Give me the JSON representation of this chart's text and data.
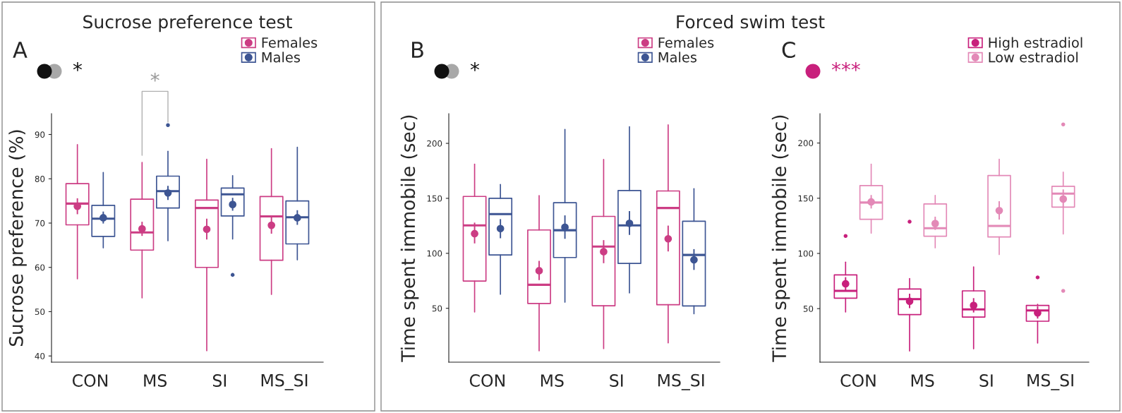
{
  "chart_data": [
    {
      "type": "box",
      "title": "Sucrose preference test",
      "ylabel": "Sucrose preference (%)",
      "categories": [
        "CON",
        "MS",
        "SI",
        "MS_SI"
      ],
      "ylim": [
        38.6,
        94.7
      ],
      "yticks": [
        40,
        50,
        60,
        70,
        80,
        90
      ],
      "grid": false,
      "legend": "top right",
      "marker": "circle",
      "annotations": [
        "A",
        "*",
        "*"
      ],
      "series": [
        {
          "name": "Females",
          "color": "#cc3d84",
          "boxes": [
            {
              "low": 57.4,
              "q1": 69.6,
              "median": 74.4,
              "q3": 78.9,
              "high": 87.7
            },
            {
              "low": 53.1,
              "q1": 63.9,
              "median": 67.9,
              "q3": 75.4,
              "high": 83.7
            },
            {
              "low": 41.2,
              "q1": 60.0,
              "median": 73.4,
              "q3": 75.2,
              "high": 84.4
            },
            {
              "low": 53.9,
              "q1": 61.6,
              "median": 71.5,
              "q3": 76.0,
              "high": 86.8
            }
          ]
        },
        {
          "name": "Males",
          "color": "#3d5593",
          "boxes": [
            {
              "low": 64.4,
              "q1": 67.0,
              "median": 71.0,
              "q3": 74.0,
              "high": 81.4
            },
            {
              "low": 66.0,
              "q1": 73.4,
              "median": 77.2,
              "q3": 80.6,
              "high": 86.2,
              "outliers": [
                92.1
              ]
            },
            {
              "low": 66.4,
              "q1": 71.6,
              "median": 76.5,
              "q3": 77.9,
              "high": 80.7,
              "outliers": [
                58.3
              ]
            },
            {
              "low": 61.7,
              "q1": 65.3,
              "median": 71.3,
              "q3": 75.0,
              "high": 87.1
            }
          ]
        },
        {
          "type": "scatter",
          "color": "#cc3d84",
          "x": [
            "CON",
            "MS",
            "SI",
            "MS_SI"
          ],
          "values": [
            73.8,
            68.7,
            68.6,
            69.5
          ],
          "errors": [
            [
              72.0,
              75.6
            ],
            [
              67.1,
              70.3
            ],
            [
              66.3,
              71.0
            ],
            [
              67.6,
              71.3
            ]
          ]
        },
        {
          "type": "scatter",
          "color": "#3d5593",
          "x": [
            "CON",
            "MS",
            "SI",
            "MS_SI"
          ],
          "values": [
            71.2,
            76.8,
            74.2,
            71.2
          ],
          "errors": [
            [
              69.9,
              72.6
            ],
            [
              75.2,
              78.4
            ],
            [
              72.8,
              75.7
            ],
            [
              69.6,
              72.9
            ]
          ]
        }
      ]
    },
    {
      "type": "box",
      "title": "Forced swim test",
      "ylabel": "Time spent immobile (sec)",
      "categories": [
        "CON",
        "MS",
        "SI",
        "MS_SI"
      ],
      "ylim": [
        1,
        227
      ],
      "yticks": [
        50,
        100,
        150,
        200
      ],
      "grid": false,
      "legend": "top right",
      "marker": "circle",
      "annotations": [
        "B",
        "*"
      ],
      "series": [
        {
          "name": "Females",
          "color": "#cc3d84",
          "boxes": [
            {
              "low": 46.6,
              "q1": 74.8,
              "median": 125.4,
              "q3": 151.7,
              "high": 181.1
            },
            {
              "low": 11.3,
              "q1": 54.4,
              "median": 71.4,
              "q3": 121.2,
              "high": 152.5
            },
            {
              "low": 13.4,
              "q1": 52.3,
              "median": 106.1,
              "q3": 133.6,
              "high": 185.3
            },
            {
              "low": 18.5,
              "q1": 53.2,
              "median": 141.2,
              "q3": 156.7,
              "high": 216.8
            }
          ]
        },
        {
          "name": "Males",
          "color": "#3d5593",
          "boxes": [
            {
              "low": 62.8,
              "q1": 98.5,
              "median": 135.7,
              "q3": 150.0,
              "high": 162.6
            },
            {
              "low": 55.5,
              "q1": 96.2,
              "median": 121.0,
              "q3": 146.0,
              "high": 212.6
            },
            {
              "low": 63.9,
              "q1": 90.8,
              "median": 125.4,
              "q3": 157.1,
              "high": 215.1
            },
            {
              "low": 45.0,
              "q1": 52.1,
              "median": 98.5,
              "q3": 129.2,
              "high": 158.8
            }
          ]
        },
        {
          "type": "scatter",
          "color": "#cc3d84",
          "x": [
            "CON",
            "MS",
            "SI",
            "MS_SI"
          ],
          "values": [
            117.9,
            84.2,
            101.5,
            113.2
          ],
          "errors": [
            [
              109.0,
              127.9
            ],
            [
              75.6,
              93.1
            ],
            [
              91.0,
              112.0
            ],
            [
              101.7,
              125.2
            ]
          ]
        },
        {
          "type": "scatter",
          "color": "#3d5593",
          "x": [
            "CON",
            "MS",
            "SI",
            "MS_SI"
          ],
          "values": [
            122.5,
            123.7,
            127.3,
            94.1
          ],
          "errors": [
            [
              113.7,
              131.1
            ],
            [
              113.2,
              134.5
            ],
            [
              116.8,
              138.4
            ],
            [
              84.9,
              103.8
            ]
          ]
        }
      ]
    },
    {
      "type": "box",
      "ylabel": "Time spent immobile (sec)",
      "categories": [
        "CON",
        "MS",
        "SI",
        "MS_SI"
      ],
      "ylim": [
        1.5,
        226.6
      ],
      "yticks": [
        50,
        100,
        150,
        200
      ],
      "grid": false,
      "legend": "top right",
      "marker": "circle",
      "annotations": [
        "C",
        "***"
      ],
      "series": [
        {
          "name": "High estradiol",
          "color": "#c8207c",
          "boxes": [
            {
              "low": 46.9,
              "q1": 59.5,
              "median": 66.1,
              "q3": 80.6,
              "high": 92.1,
              "outliers": [
                115.8
              ]
            },
            {
              "low": 11.7,
              "q1": 44.6,
              "median": 58.6,
              "q3": 67.8,
              "high": 77.2,
              "outliers": [
                128.8
              ]
            },
            {
              "low": 13.6,
              "q1": 42.4,
              "median": 49.3,
              "q3": 66.1,
              "high": 87.8
            },
            {
              "low": 18.8,
              "q1": 38.6,
              "median": 48.4,
              "q3": 52.9,
              "high": 53.9,
              "outliers": [
                78.3
              ]
            }
          ]
        },
        {
          "name": "Low estradiol",
          "color": "#e389b7",
          "boxes": [
            {
              "low": 118.3,
              "q1": 130.9,
              "median": 146.1,
              "q3": 161.4,
              "high": 180.8
            },
            {
              "low": 105.1,
              "q1": 115.6,
              "median": 122.8,
              "q3": 144.8,
              "high": 152.5
            },
            {
              "low": 99.1,
              "q1": 114.9,
              "median": 124.9,
              "q3": 170.6,
              "high": 185.3
            },
            {
              "low": 117.7,
              "q1": 142.0,
              "median": 154.2,
              "q3": 160.8,
              "high": 173.6,
              "outliers": [
                216.8,
                66.1
              ]
            }
          ]
        },
        {
          "type": "scatter",
          "color": "#c8207c",
          "x": [
            "CON",
            "MS",
            "SI",
            "MS_SI"
          ],
          "values": [
            72.5,
            56.7,
            52.9,
            46.1
          ],
          "errors": [
            [
              66.5,
              78.5
            ],
            [
              50.5,
              63.5
            ],
            [
              46.5,
              59.5
            ],
            [
              41.0,
              52.0
            ]
          ]
        },
        {
          "type": "scatter",
          "color": "#e389b7",
          "x": [
            "CON",
            "MS",
            "SI",
            "MS_SI"
          ],
          "values": [
            146.7,
            127.1,
            138.8,
            149.3
          ],
          "errors": [
            [
              140.7,
              152.9
            ],
            [
              121.3,
              133.3
            ],
            [
              130.7,
              147.3
            ],
            [
              142.0,
              158.0
            ]
          ]
        }
      ]
    }
  ]
}
